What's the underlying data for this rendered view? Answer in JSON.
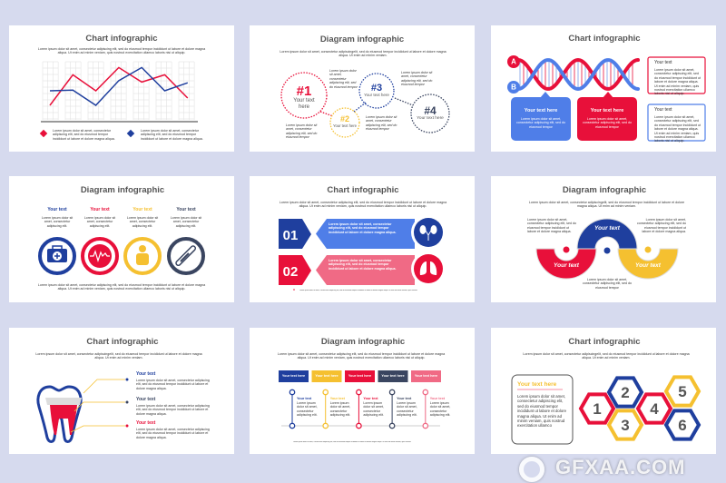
{
  "colors": {
    "blue": "#1f3f9e",
    "red": "#e8103a",
    "yellow": "#f5c030",
    "dark": "#3a4560",
    "light_blue": "#4f7ee8",
    "pink": "#f06a85",
    "background": "#d6daee"
  },
  "lorem": {
    "desc": "Lorem ipsum dolor sit amet, consectetur adipiscing elit, sed do eiusmod tempor incididunt ut labore et dolore magna aliqua. Ut enim ad minim veniam, quis nostrud exercitation ullamco laboris nisi ut aliquip.",
    "desc_short": "Lorem ipsum dolor sit amet, consectetur adipiscingelit, sed do eiusmod tempor incididunt ut labore et dolore magna aliqua. Ut enim ad minim veniam.",
    "block": "Lorem ipsum dolor sit amet, consectetur adipiscing elit, sed do eiusmod tempor incididunt ut labore et dolore magna aliqua.",
    "small": "Lorem ipsum dolor sit amet, consectetur adipiscing elit, sed do eiusmod tempor",
    "tiny": "Lorem ipsum dolor sit amet, consectetur adipiscing elit.",
    "footnote": "Lorem ipsum dolor sit amet, consectetur adipiscing elit, sed do eiusmod tempor incididunt ut labore et dolore magna aliqua. Ut enim ad minim veniam, quis nostrud."
  },
  "slides": [
    {
      "title": "Chart infographic",
      "chart_data": {
        "type": "line",
        "series": [
          {
            "color": "#e8103a",
            "values": [
              20,
              62,
              40,
              72,
              52,
              62,
              30
            ]
          },
          {
            "color": "#1f3f9e",
            "values": [
              40,
              41,
              20,
              54,
              72,
              40,
              51
            ]
          }
        ],
        "grid": true,
        "legend": "bottom"
      }
    },
    {
      "title": "Diagram infographic",
      "circles": [
        {
          "num": "#1",
          "label": "Your text here"
        },
        {
          "num": "#2",
          "label": "Your text here"
        },
        {
          "num": "#3",
          "label": "Your text here"
        },
        {
          "num": "#4",
          "label": "Your text here"
        }
      ]
    },
    {
      "title": "Chart infographic",
      "a": "A",
      "b": "B",
      "callouts": [
        {
          "title": "Your text here",
          "body": "Lorem ipsum dolor sit amet, consectetur adipiscing elit, sed do eiusmod tempor"
        },
        {
          "title": "Your text here",
          "body": "Lorem ipsum dolor sit amet, consectetur adipiscing elit, sed do eiusmod tempor"
        }
      ],
      "boxes": [
        {
          "title": "Your text"
        },
        {
          "title": "Your text"
        }
      ]
    },
    {
      "title": "Diagram infographic",
      "items": [
        {
          "label": "Your text",
          "icon": "first-aid-kit-icon"
        },
        {
          "label": "Your text",
          "icon": "heartbeat-icon"
        },
        {
          "label": "Your text",
          "icon": "person-icon"
        },
        {
          "label": "Your text",
          "icon": "thermometer-icon"
        }
      ]
    },
    {
      "title": "Chart infographic",
      "rows": [
        {
          "num": "01",
          "icon": "kidneys-icon"
        },
        {
          "num": "02",
          "icon": "lungs-icon"
        }
      ]
    },
    {
      "title": "Diagram infographic",
      "arcs": [
        "Your text",
        "Your text",
        "Your text"
      ]
    },
    {
      "title": "Chart infographic",
      "items": [
        "Your text",
        "Your text",
        "Your text"
      ]
    },
    {
      "title": "Diagram infographic",
      "boxes": [
        "Your text here",
        "Your text here",
        "Your text here",
        "Your text here",
        "Your text here"
      ],
      "steps": [
        "Your text",
        "Your text",
        "Your text",
        "Your text",
        "Your text"
      ]
    },
    {
      "title": "Chart infographic",
      "box_title": "Your text here",
      "box_body": "Lorem ipsum dolor sit amet, consectetur adipiscing elit, sed do eiusmod tempor incididunt ut labore et dolore magna aliqua. Ut enim ad minim veniam, quis nostrud exercitation ullamco",
      "hexes": [
        "1",
        "2",
        "3",
        "4",
        "5",
        "6"
      ]
    }
  ],
  "watermark": "GFXAA.COM"
}
